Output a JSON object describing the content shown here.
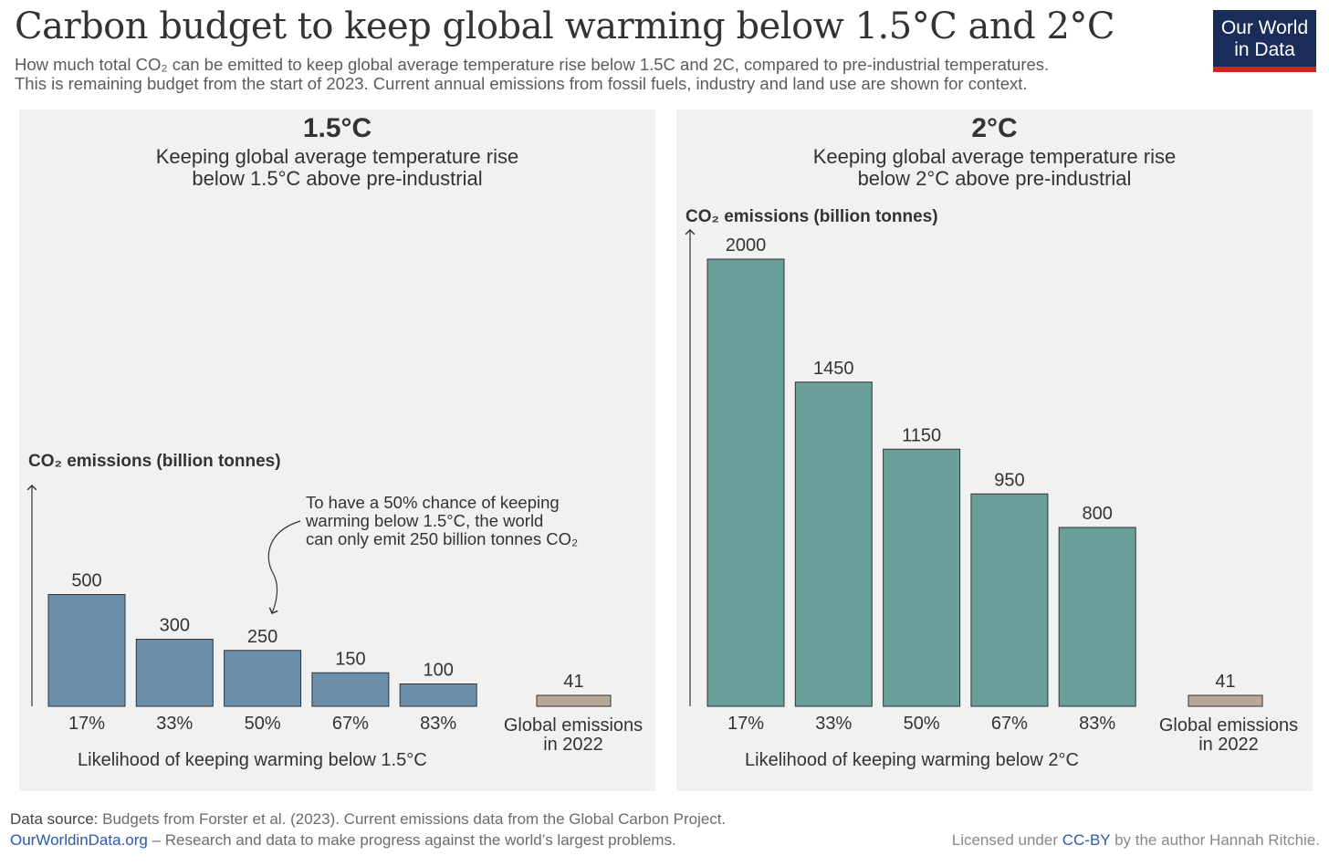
{
  "header": {
    "title": "Carbon budget to keep global warming below 1.5°C and 2°C",
    "subtitle_line1": "How much total CO₂ can be emitted to keep global average temperature rise below 1.5C and 2C, compared to pre-industrial temperatures.",
    "subtitle_line2": "This is remaining budget from the start of 2023. Current annual emissions from fossil fuels, industry and land use are shown for context.",
    "logo_line1": "Our World",
    "logo_line2": "in Data"
  },
  "panels": [
    {
      "title": "1.5°C",
      "subtitle_line1": "Keeping global average temperature rise",
      "subtitle_line2": "below 1.5°C above pre-industrial",
      "ylabel": "CO₂ emissions (billion tonnes)",
      "xlabel": "Likelihood of keeping warming below 1.5°C",
      "annotation_line1": "To have a 50% chance of keeping",
      "annotation_line2": "warming below 1.5°C, the world",
      "annotation_line3": "can only emit 250 billion tonnes CO₂"
    },
    {
      "title": "2°C",
      "subtitle_line1": "Keeping global average temperature rise",
      "subtitle_line2": "below 2°C above pre-industrial",
      "ylabel": "CO₂ emissions (billion tonnes)",
      "xlabel": "Likelihood of keeping warming below 2°C"
    }
  ],
  "chart_data": [
    {
      "type": "bar",
      "title": "1.5°C",
      "ylabel": "CO₂ emissions (billion tonnes)",
      "xlabel": "Likelihood of keeping warming below 1.5°C",
      "categories": [
        "17%",
        "33%",
        "50%",
        "67%",
        "83%"
      ],
      "values": [
        500,
        300,
        250,
        150,
        100
      ],
      "context": {
        "label_line1": "Global emissions",
        "label_line2": "in 2022",
        "value": 41
      },
      "bar_color": "#6b8fab",
      "context_color": "#b9a898"
    },
    {
      "type": "bar",
      "title": "2°C",
      "ylabel": "CO₂ emissions (billion tonnes)",
      "xlabel": "Likelihood of keeping warming below 2°C",
      "categories": [
        "17%",
        "33%",
        "50%",
        "67%",
        "83%"
      ],
      "values": [
        2000,
        1450,
        1150,
        950,
        800
      ],
      "context": {
        "label_line1": "Global emissions",
        "label_line2": "in 2022",
        "value": 41
      },
      "bar_color": "#6a9e9a",
      "context_color": "#b9a898"
    }
  ],
  "footer": {
    "source_label": "Data source:",
    "source_text": "Budgets from Forster et al. (2023). Current emissions data from the Global Carbon Project.",
    "site_link": "OurWorldinData.org",
    "site_text": "– Research and data to make progress against the world’s largest problems.",
    "license_pre": "Licensed under",
    "license_link": "CC-BY",
    "license_post": "by the author Hannah Ritchie."
  }
}
